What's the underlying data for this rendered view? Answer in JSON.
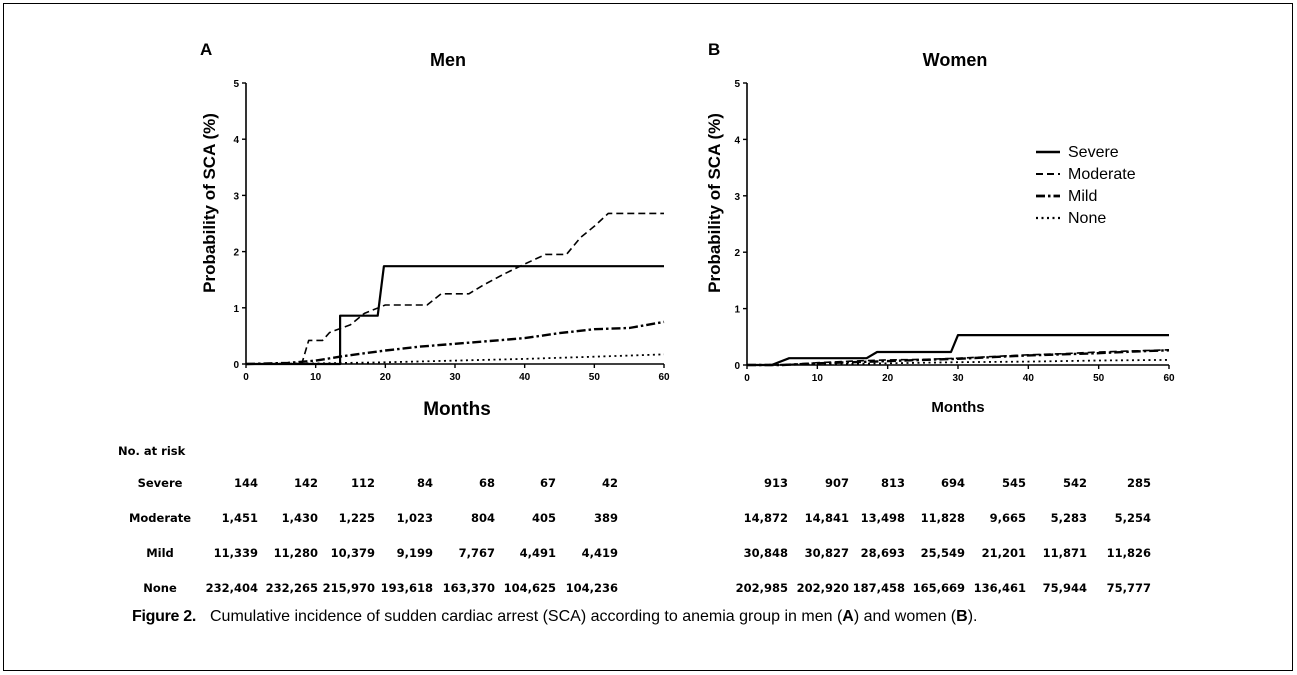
{
  "figure": {
    "label": "Figure 2.",
    "caption_before": "Cumulative incidence of sudden cardiac arrest (SCA) according to anemia group in men (",
    "caption_a": "A",
    "caption_mid": ") and women (",
    "caption_b": "B",
    "caption_after": ")."
  },
  "legend": {
    "entries": [
      {
        "label": "Severe",
        "style": "solid"
      },
      {
        "label": "Moderate",
        "style": "dashed"
      },
      {
        "label": "Mild",
        "style": "dashdot"
      },
      {
        "label": "None",
        "style": "dotted"
      }
    ]
  },
  "chart_data": [
    {
      "type": "line",
      "panel": "A",
      "title": "Men",
      "xlabel": "Months",
      "ylabel": "Probability of SCA (%)",
      "xlim": [
        0,
        60
      ],
      "ylim": [
        0,
        5
      ],
      "xticks": [
        0,
        10,
        20,
        30,
        40,
        50,
        60
      ],
      "yticks": [
        0,
        1,
        2,
        3,
        4,
        5
      ],
      "grid": false,
      "series": [
        {
          "name": "Severe",
          "style": "solid",
          "points": [
            [
              0,
              0
            ],
            [
              13.5,
              0
            ],
            [
              13.5,
              0.86
            ],
            [
              18.9,
              0.86
            ],
            [
              19.8,
              1.74
            ],
            [
              60,
              1.74
            ]
          ]
        },
        {
          "name": "Moderate",
          "style": "dashed",
          "points": [
            [
              0,
              0
            ],
            [
              8,
              0
            ],
            [
              9,
              0.42
            ],
            [
              11,
              0.42
            ],
            [
              12,
              0.56
            ],
            [
              15,
              0.7
            ],
            [
              17,
              0.9
            ],
            [
              20,
              1.05
            ],
            [
              26,
              1.05
            ],
            [
              28,
              1.25
            ],
            [
              32,
              1.25
            ],
            [
              34,
              1.4
            ],
            [
              37,
              1.6
            ],
            [
              40,
              1.78
            ],
            [
              43,
              1.95
            ],
            [
              46,
              1.95
            ],
            [
              48,
              2.25
            ],
            [
              50,
              2.45
            ],
            [
              52,
              2.68
            ],
            [
              60,
              2.68
            ]
          ]
        },
        {
          "name": "Mild",
          "style": "dashdot",
          "points": [
            [
              0,
              0
            ],
            [
              6,
              0.02
            ],
            [
              10,
              0.06
            ],
            [
              14,
              0.14
            ],
            [
              20,
              0.24
            ],
            [
              25,
              0.31
            ],
            [
              30,
              0.36
            ],
            [
              35,
              0.41
            ],
            [
              40,
              0.46
            ],
            [
              45,
              0.55
            ],
            [
              50,
              0.62
            ],
            [
              55,
              0.64
            ],
            [
              60,
              0.75
            ]
          ]
        },
        {
          "name": "None",
          "style": "dotted",
          "points": [
            [
              0,
              0
            ],
            [
              10,
              0.01
            ],
            [
              20,
              0.03
            ],
            [
              30,
              0.06
            ],
            [
              40,
              0.09
            ],
            [
              50,
              0.13
            ],
            [
              60,
              0.17
            ]
          ]
        }
      ],
      "risk_table": {
        "header": "No. at risk",
        "rows": [
          {
            "group": "Severe",
            "values": [
              "144",
              "142",
              "112",
              "84",
              "68",
              "67",
              "42"
            ]
          },
          {
            "group": "Moderate",
            "values": [
              "1,451",
              "1,430",
              "1,225",
              "1,023",
              "804",
              "405",
              "389"
            ]
          },
          {
            "group": "Mild",
            "values": [
              "11,339",
              "11,280",
              "10,379",
              "9,199",
              "7,767",
              "4,491",
              "4,419"
            ]
          },
          {
            "group": "None",
            "values": [
              "232,404",
              "232,265",
              "215,970",
              "193,618",
              "163,370",
              "104,625",
              "104,236"
            ]
          }
        ]
      }
    },
    {
      "type": "line",
      "panel": "B",
      "title": "Women",
      "xlabel": "Months",
      "ylabel": "Probability of SCA (%)",
      "xlim": [
        0,
        60
      ],
      "ylim": [
        0,
        5
      ],
      "xticks": [
        0,
        10,
        20,
        30,
        40,
        50,
        60
      ],
      "yticks": [
        0,
        1,
        2,
        3,
        4,
        5
      ],
      "grid": false,
      "series": [
        {
          "name": "Severe",
          "style": "solid",
          "points": [
            [
              0,
              0
            ],
            [
              3.5,
              0
            ],
            [
              6,
              0.12
            ],
            [
              17,
              0.12
            ],
            [
              18.5,
              0.23
            ],
            [
              29,
              0.23
            ],
            [
              30,
              0.53
            ],
            [
              60,
              0.53
            ]
          ]
        },
        {
          "name": "Moderate",
          "style": "dashed",
          "points": [
            [
              0,
              0
            ],
            [
              5,
              0
            ],
            [
              10,
              0.04
            ],
            [
              15,
              0.07
            ],
            [
              20,
              0.09
            ],
            [
              25,
              0.1
            ],
            [
              30,
              0.12
            ],
            [
              35,
              0.15
            ],
            [
              40,
              0.18
            ],
            [
              45,
              0.2
            ],
            [
              50,
              0.23
            ],
            [
              55,
              0.25
            ],
            [
              60,
              0.27
            ]
          ]
        },
        {
          "name": "Mild",
          "style": "dashdot",
          "points": [
            [
              0,
              0
            ],
            [
              5,
              0
            ],
            [
              10,
              0.03
            ],
            [
              15,
              0.05
            ],
            [
              20,
              0.07
            ],
            [
              25,
              0.09
            ],
            [
              30,
              0.11
            ],
            [
              35,
              0.14
            ],
            [
              40,
              0.17
            ],
            [
              45,
              0.19
            ],
            [
              50,
              0.21
            ],
            [
              55,
              0.24
            ],
            [
              60,
              0.26
            ]
          ]
        },
        {
          "name": "None",
          "style": "dotted",
          "points": [
            [
              0,
              0
            ],
            [
              10,
              0.01
            ],
            [
              20,
              0.03
            ],
            [
              30,
              0.05
            ],
            [
              40,
              0.06
            ],
            [
              50,
              0.08
            ],
            [
              60,
              0.09
            ]
          ]
        }
      ],
      "risk_table": {
        "header": "",
        "rows": [
          {
            "group": "Severe",
            "values": [
              "913",
              "907",
              "813",
              "694",
              "545",
              "542",
              "285"
            ]
          },
          {
            "group": "Moderate",
            "values": [
              "14,872",
              "14,841",
              "13,498",
              "11,828",
              "9,665",
              "5,283",
              "5,254"
            ]
          },
          {
            "group": "Mild",
            "values": [
              "30,848",
              "30,827",
              "28,693",
              "25,549",
              "21,201",
              "11,871",
              "11,826"
            ]
          },
          {
            "group": "None",
            "values": [
              "202,985",
              "202,920",
              "187,458",
              "165,669",
              "136,461",
              "75,944",
              "75,777"
            ]
          }
        ]
      }
    }
  ]
}
